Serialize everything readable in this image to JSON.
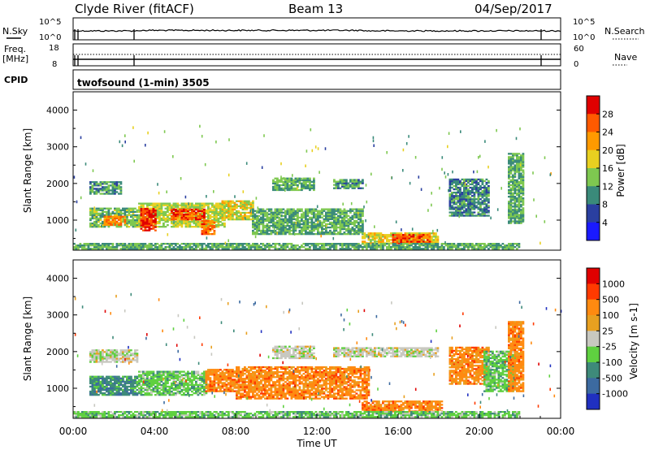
{
  "header": {
    "station": "Clyde River (fitACF)",
    "beam": "Beam 13",
    "date": "04/Sep/2017"
  },
  "top_panels": {
    "nsky_label": "N.Sky",
    "nsearch_label": "N.Search",
    "noise_ticks": [
      "10^5",
      "10^0"
    ],
    "freq_label": "Freq.",
    "freq_unit": "[MHz]",
    "freq_ticks": [
      "18",
      "8"
    ],
    "nave_label": "Nave",
    "nave_ticks": [
      "60",
      "0"
    ],
    "cpid_label": "CPID",
    "cpid_value": "twofsound (1-min) 3505"
  },
  "colors": {
    "power_scale": [
      "#1a1aff",
      "#2a3fa0",
      "#3a8a7a",
      "#7ec850",
      "#e8d020",
      "#ff9a00",
      "#ff5a00",
      "#e00000"
    ],
    "velocity_scale": [
      "#2030c0",
      "#3c6aa0",
      "#3e8a7a",
      "#5fd040",
      "#c8c8c0",
      "#e8a020",
      "#ff8a10",
      "#ff3a00",
      "#e00000"
    ]
  },
  "chart_data": [
    {
      "type": "heatmap",
      "name": "power",
      "xlabel": "",
      "ylabel": "Slant Range [km]",
      "ylim": [
        180,
        4500
      ],
      "y_ticks": [
        1000,
        2000,
        3000,
        4000
      ],
      "colorbar": {
        "label": "Power [dB]",
        "ticks": [
          4,
          8,
          12,
          16,
          20,
          24,
          28
        ],
        "range": [
          0,
          32
        ]
      },
      "bands": [
        {
          "t0": 0.8,
          "t1": 2.4,
          "r0": 1700,
          "r1": 2050,
          "v": 11
        },
        {
          "t0": 0.8,
          "t1": 3.2,
          "r0": 800,
          "r1": 1300,
          "v": 13
        },
        {
          "t0": 1.5,
          "t1": 2.6,
          "r0": 850,
          "r1": 1100,
          "v": 24
        },
        {
          "t0": 3.2,
          "t1": 7.4,
          "r0": 800,
          "r1": 1450,
          "v": 16
        },
        {
          "t0": 3.3,
          "t1": 4.1,
          "r0": 700,
          "r1": 1300,
          "v": 28
        },
        {
          "t0": 4.8,
          "t1": 6.4,
          "r0": 1000,
          "r1": 1300,
          "v": 26
        },
        {
          "t0": 6.3,
          "t1": 6.9,
          "r0": 600,
          "r1": 1000,
          "v": 25
        },
        {
          "t0": 7.3,
          "t1": 8.8,
          "r0": 1000,
          "r1": 1500,
          "v": 18
        },
        {
          "t0": 8.8,
          "t1": 14.2,
          "r0": 600,
          "r1": 1300,
          "v": 12
        },
        {
          "t0": 9.8,
          "t1": 11.8,
          "r0": 1800,
          "r1": 2150,
          "v": 12
        },
        {
          "t0": 12.8,
          "t1": 14.2,
          "r0": 1850,
          "r1": 2100,
          "v": 11
        },
        {
          "t0": 14.2,
          "t1": 18.0,
          "r0": 350,
          "r1": 650,
          "v": 18
        },
        {
          "t0": 15.7,
          "t1": 17.6,
          "r0": 350,
          "r1": 600,
          "v": 26
        },
        {
          "t0": 18.5,
          "t1": 20.5,
          "r0": 1100,
          "r1": 2100,
          "v": 10
        },
        {
          "t0": 21.4,
          "t1": 22.2,
          "r0": 900,
          "r1": 2800,
          "v": 12
        },
        {
          "t0": 0.0,
          "t1": 22.0,
          "r0": 200,
          "r1": 380,
          "v": 12
        }
      ]
    },
    {
      "type": "heatmap",
      "name": "velocity",
      "xlabel": "Time UT",
      "ylabel": "Slant Range [km]",
      "ylim": [
        180,
        4500
      ],
      "y_ticks": [
        1000,
        2000,
        3000,
        4000
      ],
      "x_ticks": [
        "00:00",
        "04:00",
        "08:00",
        "12:00",
        "16:00",
        "20:00",
        "00:00"
      ],
      "xlim": [
        0,
        24
      ],
      "colorbar": {
        "label": "Velocity [m s-1]",
        "ticks": [
          "1000",
          "500",
          "100",
          "25",
          "-25",
          "-100",
          "-500",
          "-1000"
        ]
      },
      "bands": [
        {
          "t0": 0.8,
          "t1": 3.2,
          "r0": 1700,
          "r1": 2050,
          "c": 4
        },
        {
          "t0": 0.8,
          "t1": 3.2,
          "r0": 800,
          "r1": 1300,
          "c": 2
        },
        {
          "t0": 3.2,
          "t1": 6.5,
          "r0": 800,
          "r1": 1450,
          "c": 3
        },
        {
          "t0": 6.5,
          "t1": 8.2,
          "r0": 900,
          "r1": 1500,
          "c": 6
        },
        {
          "t0": 8.0,
          "t1": 14.5,
          "r0": 700,
          "r1": 1600,
          "c": 6
        },
        {
          "t0": 9.8,
          "t1": 11.8,
          "r0": 1800,
          "r1": 2150,
          "c": 4
        },
        {
          "t0": 12.8,
          "t1": 18.0,
          "r0": 1850,
          "r1": 2100,
          "c": 4
        },
        {
          "t0": 14.2,
          "t1": 18.2,
          "r0": 350,
          "r1": 650,
          "c": 6
        },
        {
          "t0": 18.5,
          "t1": 20.5,
          "r0": 1100,
          "r1": 2100,
          "c": 6
        },
        {
          "t0": 20.2,
          "t1": 21.8,
          "r0": 900,
          "r1": 2000,
          "c": 3
        },
        {
          "t0": 21.4,
          "t1": 22.2,
          "r0": 900,
          "r1": 2800,
          "c": 6
        },
        {
          "t0": 0.0,
          "t1": 22.0,
          "r0": 200,
          "r1": 380,
          "c": 3
        }
      ]
    }
  ]
}
